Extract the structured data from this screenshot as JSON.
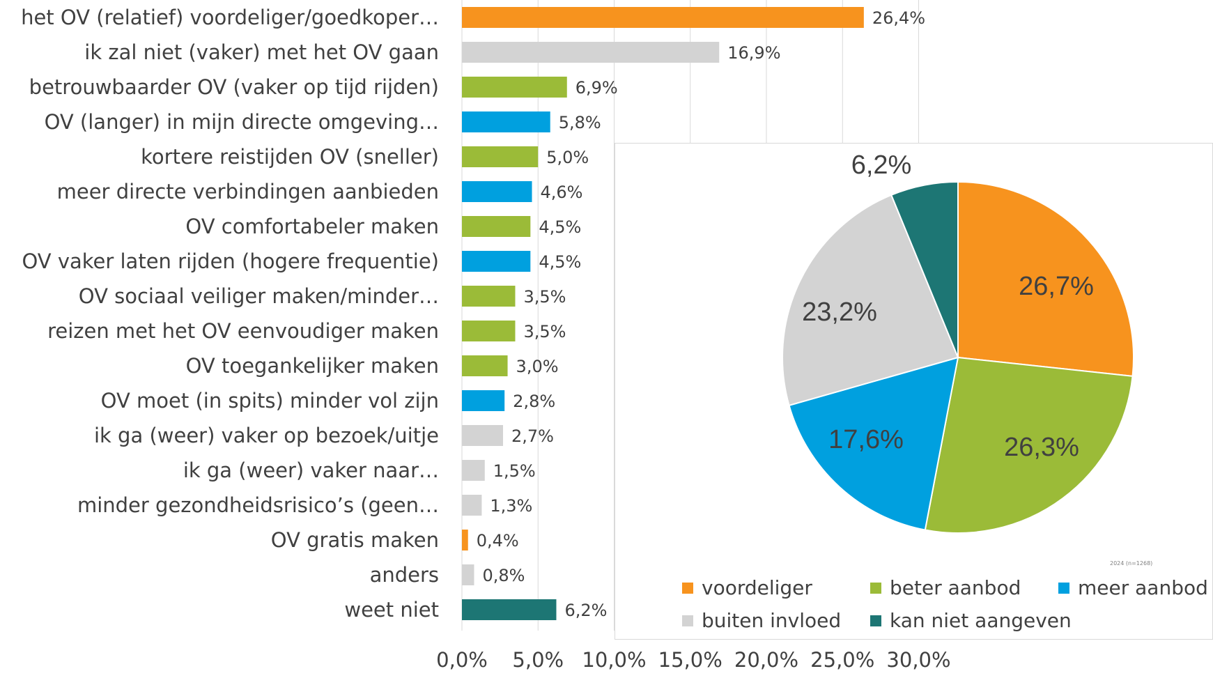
{
  "chart_data": [
    {
      "type": "bar",
      "orientation": "horizontal",
      "categories": [
        "het OV (relatief) voordeliger/goedkoper…",
        "ik zal niet (vaker) met het OV gaan",
        "betrouwbaarder OV (vaker op tijd rijden)",
        "OV (langer) in mijn directe omgeving…",
        "kortere reistijden OV (sneller)",
        "meer directe verbindingen aanbieden",
        "OV comfortabeler maken",
        "OV vaker laten rijden (hogere frequentie)",
        "OV sociaal veiliger maken/minder…",
        "reizen met het OV eenvoudiger maken",
        "OV toegankelijker maken",
        "OV moet (in spits) minder vol zijn",
        "ik ga (weer) vaker op bezoek/uitje",
        "ik ga (weer) vaker naar…",
        "minder gezondheidsrisico’s (geen…",
        "OV gratis maken",
        "anders",
        "weet niet"
      ],
      "values": [
        26.4,
        16.9,
        6.9,
        5.8,
        5.0,
        4.6,
        4.5,
        4.5,
        3.5,
        3.5,
        3.0,
        2.8,
        2.7,
        1.5,
        1.3,
        0.4,
        0.8,
        6.2
      ],
      "value_labels": [
        "26,4%",
        "16,9%",
        "6,9%",
        "5,8%",
        "5,0%",
        "4,6%",
        "4,5%",
        "4,5%",
        "3,5%",
        "3,5%",
        "3,0%",
        "2,8%",
        "2,7%",
        "1,5%",
        "1,3%",
        "0,4%",
        "0,8%",
        "6,2%"
      ],
      "groups": [
        "voordeliger",
        "buiten invloed",
        "beter aanbod",
        "meer aanbod",
        "beter aanbod",
        "meer aanbod",
        "beter aanbod",
        "meer aanbod",
        "beter aanbod",
        "beter aanbod",
        "beter aanbod",
        "meer aanbod",
        "buiten invloed",
        "buiten invloed",
        "buiten invloed",
        "voordeliger",
        "buiten invloed",
        "kan niet aangeven"
      ],
      "xlim": [
        0,
        30
      ],
      "xticks": [
        "0,0%",
        "5,0%",
        "10,0%",
        "15,0%",
        "20,0%",
        "25,0%",
        "30,0%"
      ],
      "grid": true
    },
    {
      "type": "pie",
      "labels": [
        "voordeliger",
        "beter aanbod",
        "meer aanbod",
        "buiten invloed",
        "kan niet aangeven"
      ],
      "values": [
        26.7,
        26.3,
        17.6,
        23.2,
        6.2
      ],
      "value_labels": [
        "26,7%",
        "26,3%",
        "17,6%",
        "23,2%",
        "6,2%"
      ],
      "note": "2024 (n=1268)",
      "legend_position": "bottom"
    }
  ],
  "colors": {
    "voordeliger": "#F7931E",
    "beter aanbod": "#9BBB38",
    "meer aanbod": "#00A0DF",
    "buiten invloed": "#D3D3D3",
    "kan niet aangeven": "#1D7674",
    "grid": "#D9D9D9",
    "text": "#404040"
  }
}
